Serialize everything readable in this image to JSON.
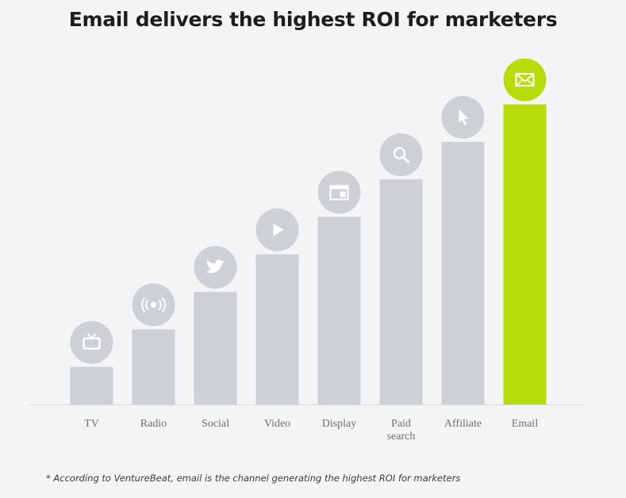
{
  "chart_data": {
    "type": "bar",
    "title": "Email delivers the highest ROI for marketers",
    "categories": [
      "TV",
      "Radio",
      "Social",
      "Video",
      "Display",
      "Paid search",
      "Affiliate",
      "Email"
    ],
    "tick_labels": [
      [
        "TV"
      ],
      [
        "Radio"
      ],
      [
        "Social"
      ],
      [
        "Video"
      ],
      [
        "Display"
      ],
      [
        "Paid",
        "search"
      ],
      [
        "Affiliate"
      ],
      [
        "Email"
      ]
    ],
    "values": [
      1,
      2,
      3,
      4,
      5,
      6,
      7,
      8
    ],
    "ylim": [
      0,
      8
    ],
    "grid": false,
    "icons": [
      "tv-icon",
      "radio-broadcast-icon",
      "twitter-bird-icon",
      "play-icon",
      "display-window-icon",
      "search-icon",
      "cursor-icon",
      "email-envelope-icon"
    ],
    "colors": {
      "default": "#cdd0d4",
      "highlight": "#b6dc0a"
    },
    "highlight_category": "Email"
  },
  "footnote": "* According to VentureBeat, email is the channel generating the highest ROI for marketers"
}
